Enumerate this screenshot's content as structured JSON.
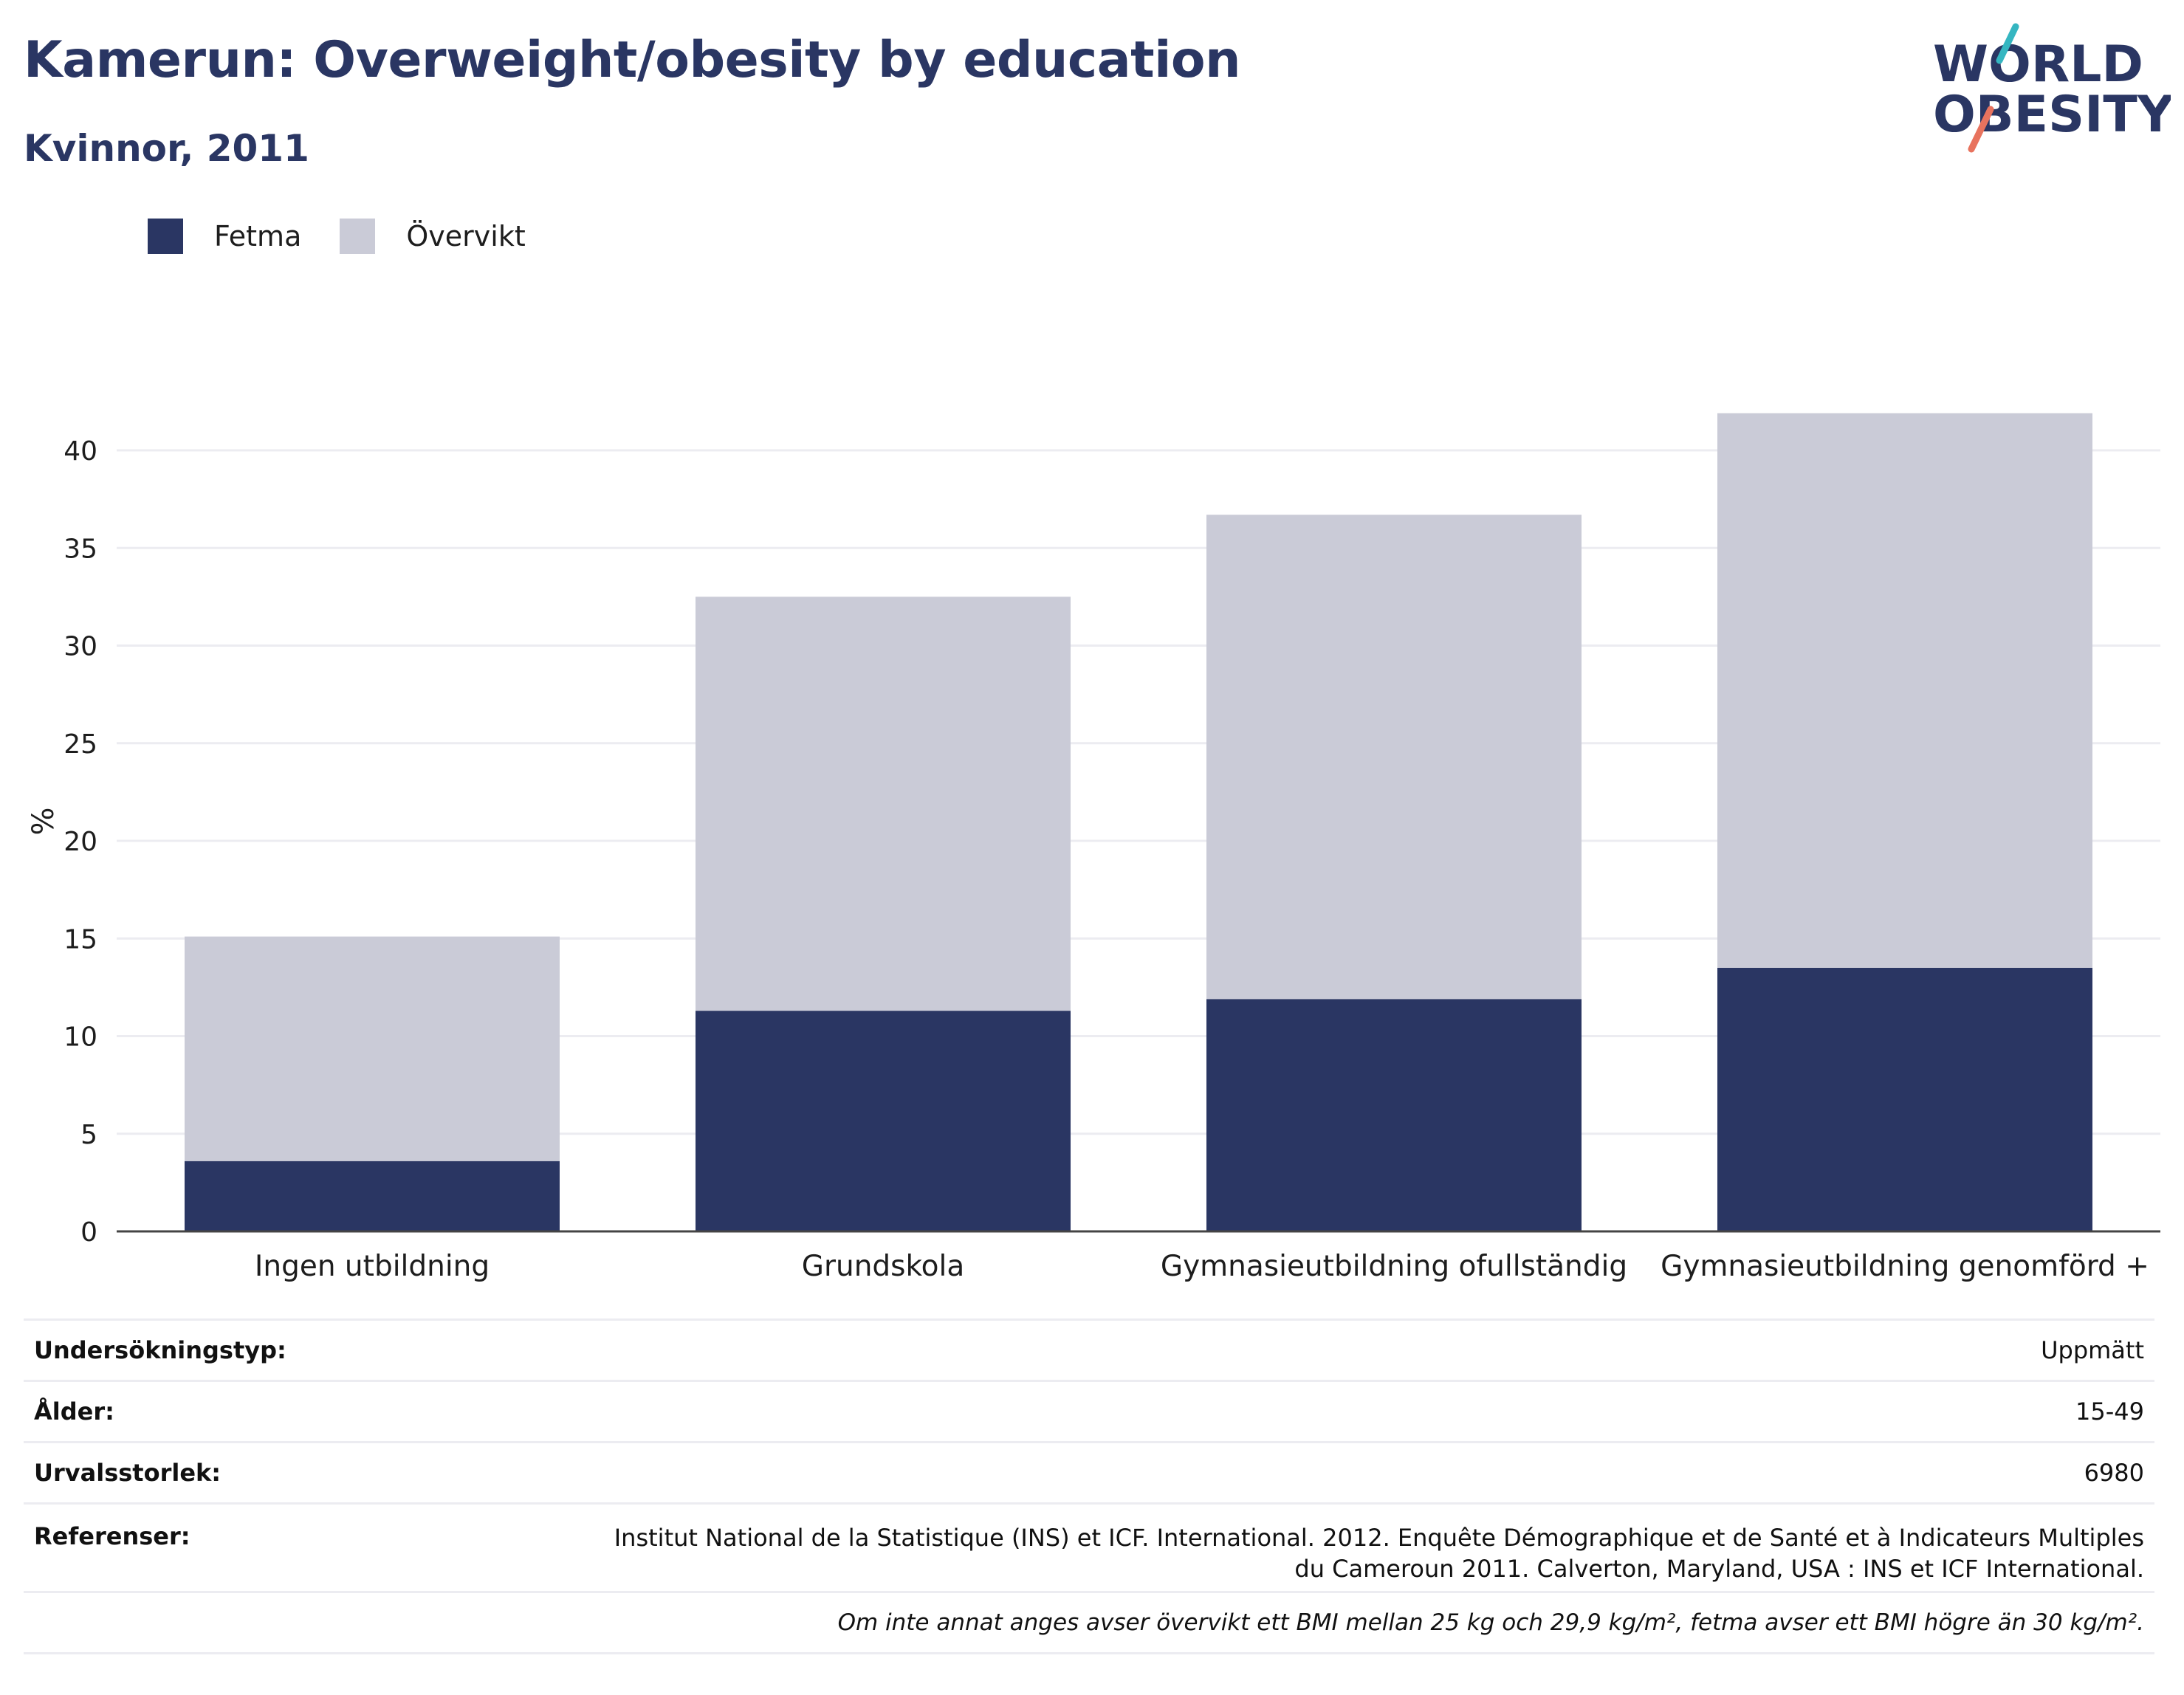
{
  "title": "Kamerun: Overweight/obesity by education",
  "subtitle": "Kvinnor, 2011",
  "logo": {
    "line1": "WORLD",
    "line2": "OBESITY"
  },
  "legend": [
    {
      "label": "Fetma",
      "color": "#2a3663"
    },
    {
      "label": "Övervikt",
      "color": "#cacbd7"
    }
  ],
  "chart_data": {
    "type": "bar",
    "stacked": true,
    "categories": [
      "Ingen utbildning",
      "Grundskola",
      "Gymnasieutbildning ofullständig",
      "Gymnasieutbildning genomförd +"
    ],
    "series": [
      {
        "name": "Fetma",
        "values": [
          3.6,
          11.3,
          11.9,
          13.5
        ],
        "color": "#2a3663"
      },
      {
        "name": "Övervikt",
        "values": [
          11.5,
          21.2,
          24.8,
          28.4
        ],
        "color": "#cacbd7"
      }
    ],
    "ylabel": "%",
    "ylim": [
      0,
      42
    ],
    "yticks": [
      0,
      5,
      10,
      15,
      20,
      25,
      30,
      35,
      40
    ],
    "grid": true,
    "legend_position": "top-left"
  },
  "info": {
    "survey_type_label": "Undersökningstyp:",
    "survey_type_value": "Uppmätt",
    "age_label": "Ålder:",
    "age_value": "15-49",
    "sample_label": "Urvalsstorlek:",
    "sample_value": "6980",
    "ref_label": "Referenser:",
    "ref_value": "Institut National de la Statistique (INS) et ICF. International. 2012. Enquête Démographique et de Santé et à Indicateurs Multiples du Cameroun 2011. Calverton, Maryland, USA : INS et ICF International.",
    "note": "Om inte annat anges avser övervikt ett BMI mellan 25 kg och 29,9 kg/m², fetma avser ett BMI högre än 30 kg/m²."
  }
}
